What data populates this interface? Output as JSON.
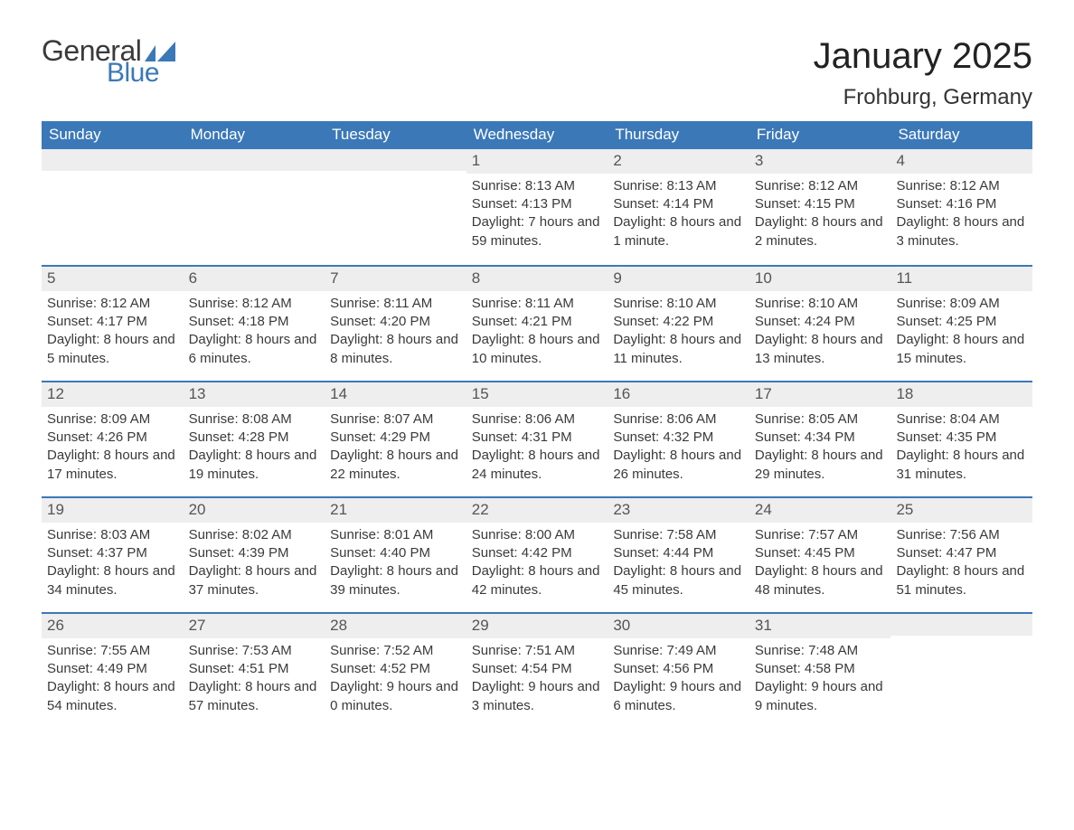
{
  "brand": {
    "word1": "General",
    "word2": "Blue",
    "flag_color": "#3b78b8",
    "text_color_dark": "#3a3a3a"
  },
  "title": "January 2025",
  "location": "Frohburg, Germany",
  "colors": {
    "header_bg": "#3b78b8",
    "header_text": "#ffffff",
    "daynum_bg": "#eeeeee",
    "week_divider": "#3b78b8",
    "body_text": "#3a3a3a",
    "page_bg": "#ffffff"
  },
  "fonts": {
    "title_size_pt": 30,
    "location_size_pt": 18,
    "weekday_size_pt": 13,
    "daynum_size_pt": 13,
    "body_size_pt": 11
  },
  "weekdays": [
    "Sunday",
    "Monday",
    "Tuesday",
    "Wednesday",
    "Thursday",
    "Friday",
    "Saturday"
  ],
  "labels": {
    "sunrise": "Sunrise",
    "sunset": "Sunset",
    "daylight": "Daylight"
  },
  "weeks": [
    [
      {
        "empty": true
      },
      {
        "empty": true
      },
      {
        "empty": true
      },
      {
        "n": "1",
        "sunrise": "8:13 AM",
        "sunset": "4:13 PM",
        "daylight": "7 hours and 59 minutes."
      },
      {
        "n": "2",
        "sunrise": "8:13 AM",
        "sunset": "4:14 PM",
        "daylight": "8 hours and 1 minute."
      },
      {
        "n": "3",
        "sunrise": "8:12 AM",
        "sunset": "4:15 PM",
        "daylight": "8 hours and 2 minutes."
      },
      {
        "n": "4",
        "sunrise": "8:12 AM",
        "sunset": "4:16 PM",
        "daylight": "8 hours and 3 minutes."
      }
    ],
    [
      {
        "n": "5",
        "sunrise": "8:12 AM",
        "sunset": "4:17 PM",
        "daylight": "8 hours and 5 minutes."
      },
      {
        "n": "6",
        "sunrise": "8:12 AM",
        "sunset": "4:18 PM",
        "daylight": "8 hours and 6 minutes."
      },
      {
        "n": "7",
        "sunrise": "8:11 AM",
        "sunset": "4:20 PM",
        "daylight": "8 hours and 8 minutes."
      },
      {
        "n": "8",
        "sunrise": "8:11 AM",
        "sunset": "4:21 PM",
        "daylight": "8 hours and 10 minutes."
      },
      {
        "n": "9",
        "sunrise": "8:10 AM",
        "sunset": "4:22 PM",
        "daylight": "8 hours and 11 minutes."
      },
      {
        "n": "10",
        "sunrise": "8:10 AM",
        "sunset": "4:24 PM",
        "daylight": "8 hours and 13 minutes."
      },
      {
        "n": "11",
        "sunrise": "8:09 AM",
        "sunset": "4:25 PM",
        "daylight": "8 hours and 15 minutes."
      }
    ],
    [
      {
        "n": "12",
        "sunrise": "8:09 AM",
        "sunset": "4:26 PM",
        "daylight": "8 hours and 17 minutes."
      },
      {
        "n": "13",
        "sunrise": "8:08 AM",
        "sunset": "4:28 PM",
        "daylight": "8 hours and 19 minutes."
      },
      {
        "n": "14",
        "sunrise": "8:07 AM",
        "sunset": "4:29 PM",
        "daylight": "8 hours and 22 minutes."
      },
      {
        "n": "15",
        "sunrise": "8:06 AM",
        "sunset": "4:31 PM",
        "daylight": "8 hours and 24 minutes."
      },
      {
        "n": "16",
        "sunrise": "8:06 AM",
        "sunset": "4:32 PM",
        "daylight": "8 hours and 26 minutes."
      },
      {
        "n": "17",
        "sunrise": "8:05 AM",
        "sunset": "4:34 PM",
        "daylight": "8 hours and 29 minutes."
      },
      {
        "n": "18",
        "sunrise": "8:04 AM",
        "sunset": "4:35 PM",
        "daylight": "8 hours and 31 minutes."
      }
    ],
    [
      {
        "n": "19",
        "sunrise": "8:03 AM",
        "sunset": "4:37 PM",
        "daylight": "8 hours and 34 minutes."
      },
      {
        "n": "20",
        "sunrise": "8:02 AM",
        "sunset": "4:39 PM",
        "daylight": "8 hours and 37 minutes."
      },
      {
        "n": "21",
        "sunrise": "8:01 AM",
        "sunset": "4:40 PM",
        "daylight": "8 hours and 39 minutes."
      },
      {
        "n": "22",
        "sunrise": "8:00 AM",
        "sunset": "4:42 PM",
        "daylight": "8 hours and 42 minutes."
      },
      {
        "n": "23",
        "sunrise": "7:58 AM",
        "sunset": "4:44 PM",
        "daylight": "8 hours and 45 minutes."
      },
      {
        "n": "24",
        "sunrise": "7:57 AM",
        "sunset": "4:45 PM",
        "daylight": "8 hours and 48 minutes."
      },
      {
        "n": "25",
        "sunrise": "7:56 AM",
        "sunset": "4:47 PM",
        "daylight": "8 hours and 51 minutes."
      }
    ],
    [
      {
        "n": "26",
        "sunrise": "7:55 AM",
        "sunset": "4:49 PM",
        "daylight": "8 hours and 54 minutes."
      },
      {
        "n": "27",
        "sunrise": "7:53 AM",
        "sunset": "4:51 PM",
        "daylight": "8 hours and 57 minutes."
      },
      {
        "n": "28",
        "sunrise": "7:52 AM",
        "sunset": "4:52 PM",
        "daylight": "9 hours and 0 minutes."
      },
      {
        "n": "29",
        "sunrise": "7:51 AM",
        "sunset": "4:54 PM",
        "daylight": "9 hours and 3 minutes."
      },
      {
        "n": "30",
        "sunrise": "7:49 AM",
        "sunset": "4:56 PM",
        "daylight": "9 hours and 6 minutes."
      },
      {
        "n": "31",
        "sunrise": "7:48 AM",
        "sunset": "4:58 PM",
        "daylight": "9 hours and 9 minutes."
      },
      {
        "empty": true
      }
    ]
  ]
}
